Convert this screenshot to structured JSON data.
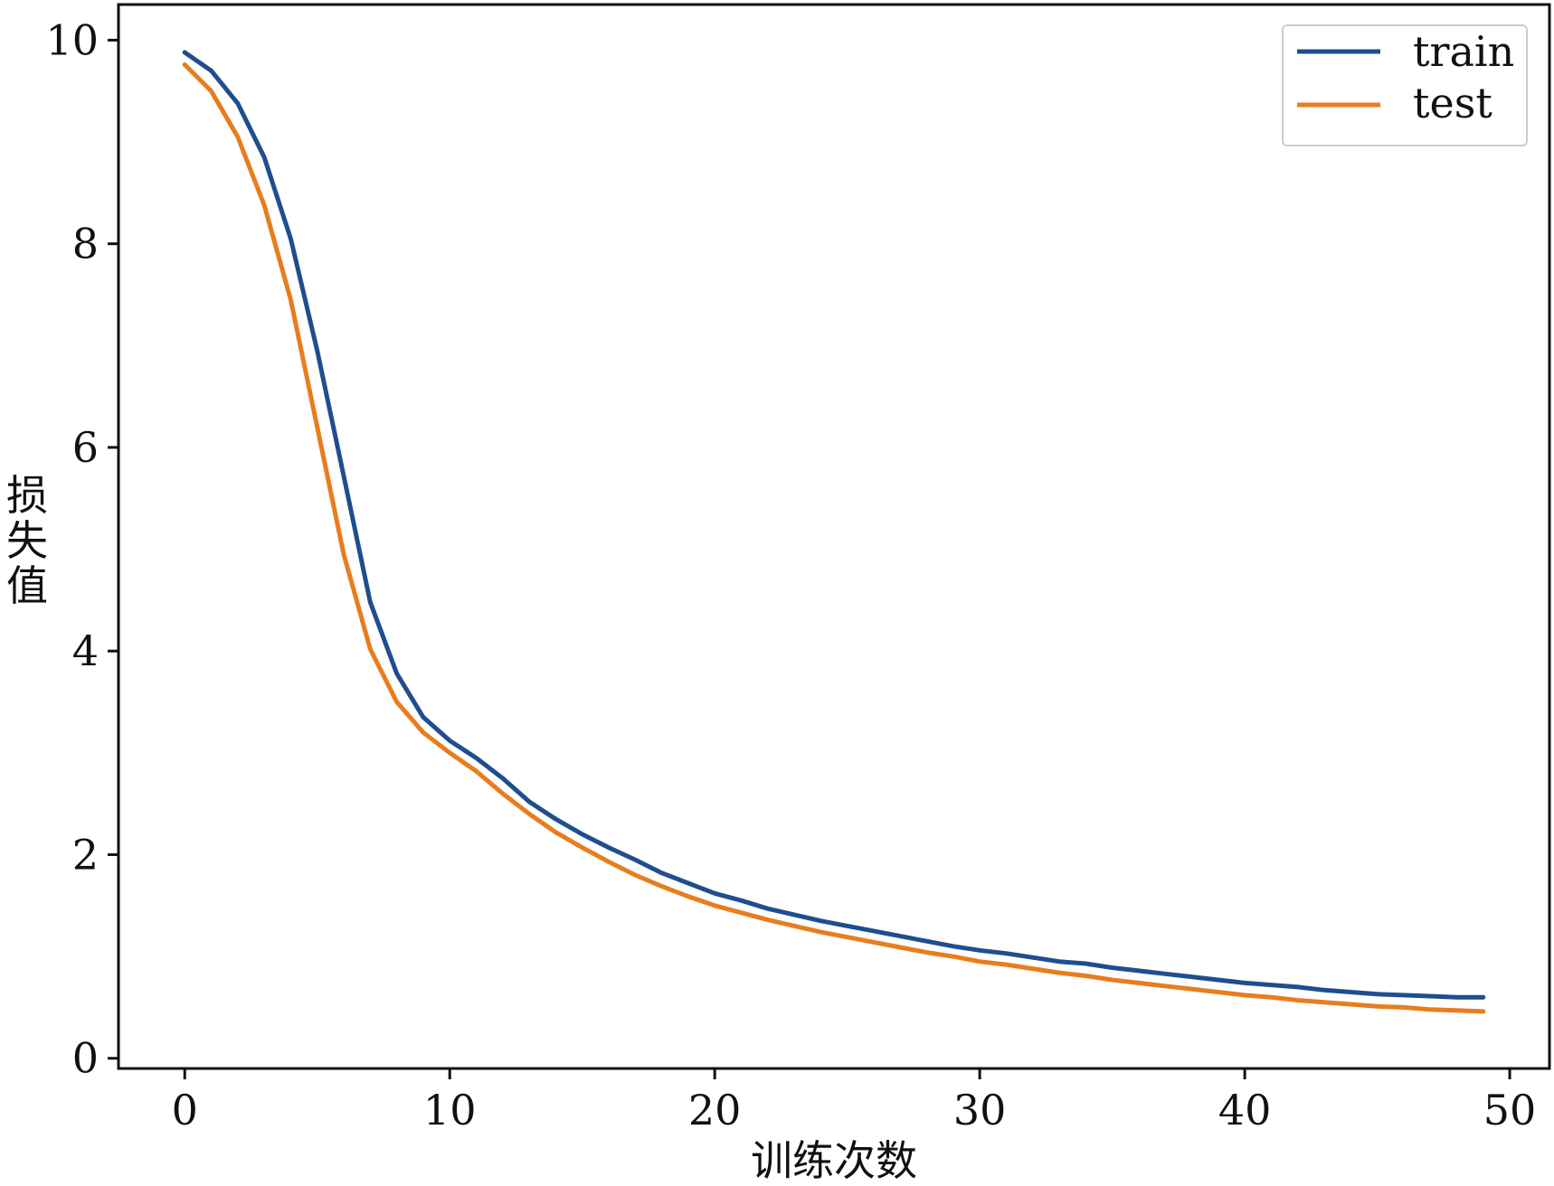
{
  "chart_data": {
    "type": "line",
    "title": "",
    "xlabel": "训练次数",
    "ylabel": "损失值",
    "xlim": [
      -2.5,
      51.5
    ],
    "ylim": [
      -0.1,
      10.35
    ],
    "xticks": [
      0,
      10,
      20,
      30,
      40,
      50
    ],
    "yticks": [
      0,
      2,
      4,
      6,
      8,
      10
    ],
    "grid": false,
    "legend": "top-right",
    "series": [
      {
        "name": "train",
        "color": "#1f4e8f",
        "x": [
          0,
          1,
          2,
          3,
          4,
          5,
          6,
          7,
          8,
          9,
          10,
          11,
          12,
          13,
          14,
          15,
          16,
          17,
          18,
          19,
          20,
          21,
          22,
          23,
          24,
          25,
          26,
          27,
          28,
          29,
          30,
          31,
          32,
          33,
          34,
          35,
          36,
          37,
          38,
          39,
          40,
          41,
          42,
          43,
          44,
          45,
          46,
          47,
          48,
          49
        ],
        "y": [
          9.88,
          9.7,
          9.38,
          8.85,
          8.05,
          6.95,
          5.72,
          4.48,
          3.78,
          3.35,
          3.12,
          2.95,
          2.75,
          2.52,
          2.35,
          2.2,
          2.07,
          1.95,
          1.82,
          1.72,
          1.62,
          1.55,
          1.47,
          1.41,
          1.35,
          1.3,
          1.25,
          1.2,
          1.15,
          1.1,
          1.06,
          1.03,
          0.99,
          0.95,
          0.93,
          0.89,
          0.86,
          0.83,
          0.8,
          0.77,
          0.74,
          0.72,
          0.7,
          0.67,
          0.65,
          0.63,
          0.62,
          0.61,
          0.6,
          0.6
        ]
      },
      {
        "name": "test",
        "color": "#e87d1e",
        "x": [
          0,
          1,
          2,
          3,
          4,
          5,
          6,
          7,
          8,
          9,
          10,
          11,
          12,
          13,
          14,
          15,
          16,
          17,
          18,
          19,
          20,
          21,
          22,
          23,
          24,
          25,
          26,
          27,
          28,
          29,
          30,
          31,
          32,
          33,
          34,
          35,
          36,
          37,
          38,
          39,
          40,
          41,
          42,
          43,
          44,
          45,
          46,
          47,
          48,
          49
        ],
        "y": [
          9.76,
          9.5,
          9.05,
          8.38,
          7.45,
          6.2,
          4.95,
          4.02,
          3.5,
          3.2,
          3.0,
          2.82,
          2.6,
          2.4,
          2.22,
          2.07,
          1.93,
          1.8,
          1.69,
          1.59,
          1.5,
          1.43,
          1.36,
          1.3,
          1.24,
          1.19,
          1.14,
          1.09,
          1.04,
          1.0,
          0.95,
          0.92,
          0.88,
          0.84,
          0.81,
          0.77,
          0.74,
          0.71,
          0.68,
          0.65,
          0.62,
          0.6,
          0.57,
          0.55,
          0.53,
          0.51,
          0.5,
          0.48,
          0.47,
          0.46
        ]
      }
    ]
  }
}
